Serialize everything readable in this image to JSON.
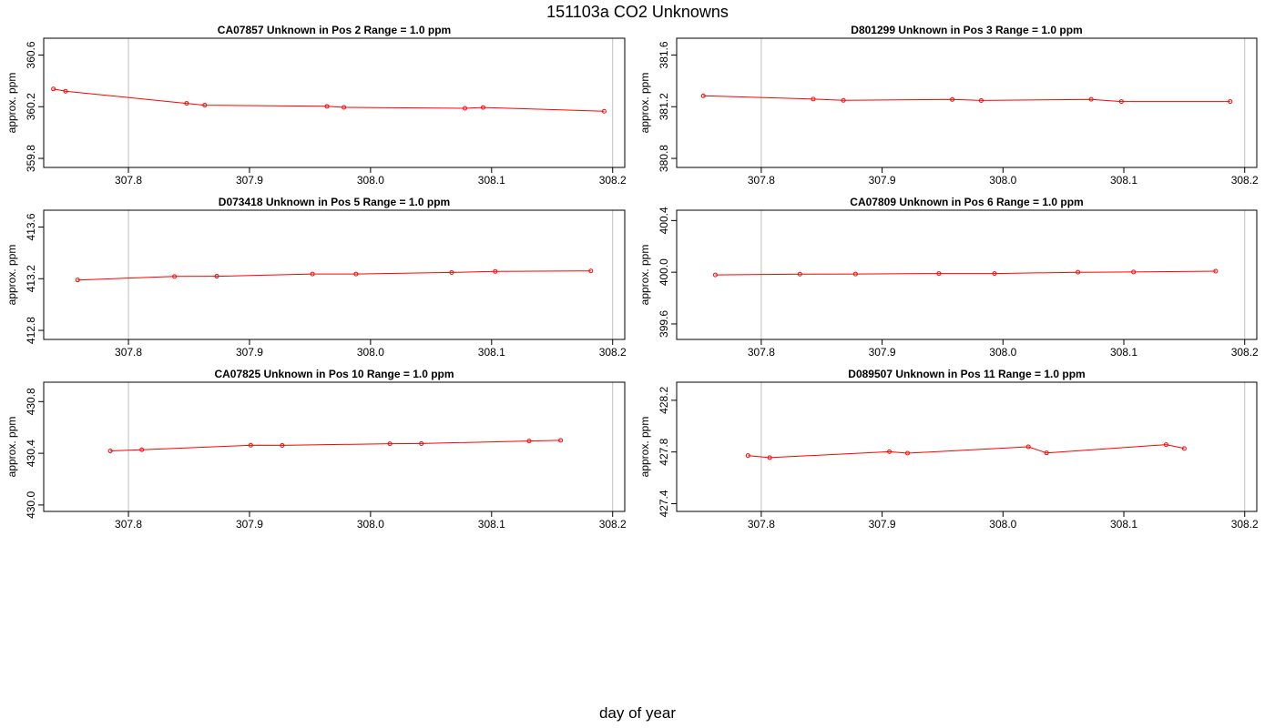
{
  "title": "151103a  CO2 Unknowns",
  "xlabel": "day of year",
  "colors": {
    "series": "#ff0000",
    "grid": "#bebebe",
    "frame": "#000000"
  },
  "chart_data": [
    {
      "type": "line",
      "title": "CA07857    Unknown in Pos 2         Range = 1.0 ppm",
      "ylabel": "approx. ppm",
      "xlim": [
        307.73,
        308.21
      ],
      "ylim": [
        359.73,
        360.73
      ],
      "x_ticks": [
        "307.8",
        "307.9",
        "308.0",
        "308.1",
        "308.2"
      ],
      "y_ticks": [
        "359.8",
        "360.2",
        "360.6"
      ],
      "grid_x": [
        307.8,
        308.2
      ],
      "x": [
        307.738,
        307.748,
        307.848,
        307.863,
        307.964,
        307.978,
        308.078,
        308.093,
        308.193
      ],
      "y": [
        360.337,
        360.32,
        360.226,
        360.212,
        360.203,
        360.195,
        360.188,
        360.194,
        360.165
      ]
    },
    {
      "type": "line",
      "title": "D801299    Unknown in Pos 3         Range = 1.0 ppm",
      "ylabel": "approx. ppm",
      "xlim": [
        307.73,
        308.21
      ],
      "ylim": [
        380.73,
        381.73
      ],
      "x_ticks": [
        "307.8",
        "307.9",
        "308.0",
        "308.1",
        "308.2"
      ],
      "y_ticks": [
        "380.8",
        "381.2",
        "381.6"
      ],
      "grid_x": [
        307.8,
        308.2
      ],
      "x": [
        307.752,
        307.843,
        307.868,
        307.958,
        307.982,
        308.073,
        308.098,
        308.188
      ],
      "y": [
        381.284,
        381.259,
        381.249,
        381.256,
        381.248,
        381.257,
        381.24,
        381.24
      ]
    },
    {
      "type": "line",
      "title": "D073418    Unknown in Pos 5         Range = 1.0 ppm",
      "ylabel": "approx. ppm",
      "xlim": [
        307.73,
        308.21
      ],
      "ylim": [
        412.73,
        413.73
      ],
      "x_ticks": [
        "307.8",
        "307.9",
        "308.0",
        "308.1",
        "308.2"
      ],
      "y_ticks": [
        "412.8",
        "413.2",
        "413.6"
      ],
      "grid_x": [
        307.8,
        308.2
      ],
      "x": [
        307.758,
        307.838,
        307.873,
        307.952,
        307.988,
        308.067,
        308.103,
        308.182
      ],
      "y": [
        413.19,
        413.217,
        413.219,
        413.236,
        413.236,
        413.248,
        413.256,
        413.26
      ]
    },
    {
      "type": "line",
      "title": "CA07809    Unknown in Pos 6         Range = 1.0 ppm",
      "ylabel": "approx. ppm",
      "xlim": [
        307.73,
        308.21
      ],
      "ylim": [
        399.48,
        400.48
      ],
      "x_ticks": [
        "307.8",
        "307.9",
        "308.0",
        "308.1",
        "308.2"
      ],
      "y_ticks": [
        "399.6",
        "400.0",
        "400.4"
      ],
      "grid_x": [
        307.8,
        308.2
      ],
      "x": [
        307.762,
        307.832,
        307.878,
        307.947,
        307.993,
        308.062,
        308.108,
        308.176
      ],
      "y": [
        399.979,
        399.985,
        399.986,
        399.99,
        399.99,
        400.0,
        400.002,
        400.008
      ]
    },
    {
      "type": "line",
      "title": "CA07825    Unknown in Pos 10         Range = 1.0 ppm",
      "ylabel": "approx. ppm",
      "xlim": [
        307.73,
        308.21
      ],
      "ylim": [
        429.95,
        430.95
      ],
      "x_ticks": [
        "307.8",
        "307.9",
        "308.0",
        "308.1",
        "308.2"
      ],
      "y_ticks": [
        "430.0",
        "430.4",
        "430.8"
      ],
      "grid_x": [
        307.8,
        308.2
      ],
      "x": [
        307.785,
        307.811,
        307.901,
        307.927,
        308.016,
        308.042,
        308.131,
        308.157
      ],
      "y": [
        430.418,
        430.427,
        430.462,
        430.461,
        430.474,
        430.475,
        430.495,
        430.5
      ]
    },
    {
      "type": "line",
      "title": "D089507    Unknown in Pos 11         Range = 1.0 ppm",
      "ylabel": "approx. ppm",
      "xlim": [
        307.73,
        308.21
      ],
      "ylim": [
        427.34,
        428.34
      ],
      "x_ticks": [
        "307.8",
        "307.9",
        "308.0",
        "308.1",
        "308.2"
      ],
      "y_ticks": [
        "427.4",
        "427.8",
        "428.2"
      ],
      "grid_x": [
        307.8,
        308.2
      ],
      "x": [
        307.789,
        307.807,
        307.906,
        307.921,
        308.021,
        308.036,
        308.135,
        308.15
      ],
      "y": [
        427.772,
        427.756,
        427.802,
        427.791,
        427.84,
        427.793,
        427.857,
        427.827
      ]
    }
  ]
}
